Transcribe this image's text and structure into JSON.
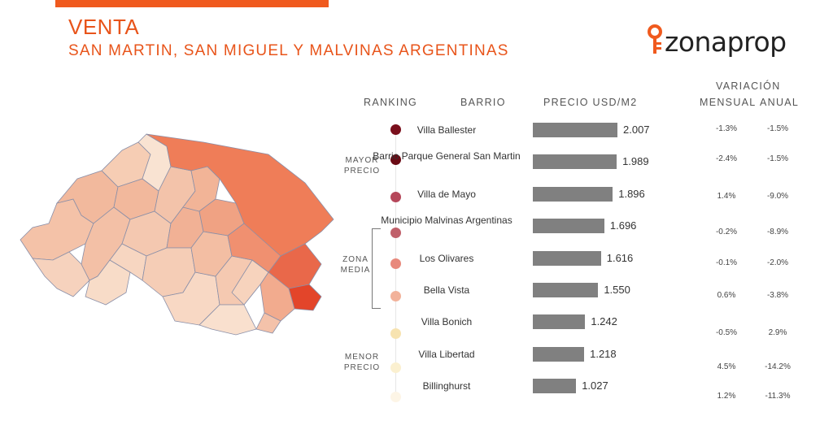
{
  "header": {
    "title": "VENTA",
    "subtitle": "SAN MARTIN, SAN MIGUEL Y MALVINAS ARGENTINAS",
    "logo": "zonaprop"
  },
  "columns": {
    "ranking": "RANKING",
    "barrio": "BARRIO",
    "precio": "PRECIO USD/M2",
    "variacion": "VARIACIÓN",
    "mensual": "MENSUAL",
    "anual": "ANUAL"
  },
  "side_labels": {
    "mayor_1": "MAYOR",
    "mayor_2": "PRECIO",
    "zona_1": "ZONA",
    "zona_2": "MEDIA",
    "menor_1": "MENOR",
    "menor_2": "PRECIO"
  },
  "chart_data": {
    "type": "bar",
    "orientation": "horizontal",
    "categories": [
      "Villa Ballester",
      "Barrio Parque General San Martin",
      "Villa de Mayo",
      "Municipio Malvinas Argentinas",
      "Los Olivares",
      "Bella Vista",
      "Villa Bonich",
      "Villa Libertad",
      "Billinghurst"
    ],
    "values": [
      2007,
      1989,
      1896,
      1696,
      1616,
      1550,
      1242,
      1218,
      1027
    ],
    "value_labels": [
      "2.007",
      "1.989",
      "1.896",
      "1.696",
      "1.616",
      "1.550",
      "1.242",
      "1.218",
      "1.027"
    ],
    "mensual": [
      "-1.3%",
      "-2.4%",
      "1.4%",
      "-0.2%",
      "-0.1%",
      "0.6%",
      "-0.5%",
      "4.5%",
      "1.2%"
    ],
    "anual": [
      "-1.5%",
      "-1.5%",
      "-9.0%",
      "-8.9%",
      "-2.0%",
      "-3.8%",
      "2.9%",
      "-14.2%",
      "-11.3%"
    ],
    "dot_colors": [
      "#7a0f1c",
      "#6a0a14",
      "#b5475a",
      "#c0606a",
      "#e8897c",
      "#f2b29a",
      "#f7e3b0",
      "#fbf0d0",
      "#fdf5e6"
    ],
    "bar_color": "#808080",
    "xlim": [
      0,
      2200
    ]
  },
  "colors": {
    "accent": "#e8541a",
    "map_dark": "#e03a1a",
    "map_mid": "#f0a584",
    "map_light": "#f8ddc8"
  },
  "icons": {
    "logo_mark": "key-pin-icon"
  }
}
